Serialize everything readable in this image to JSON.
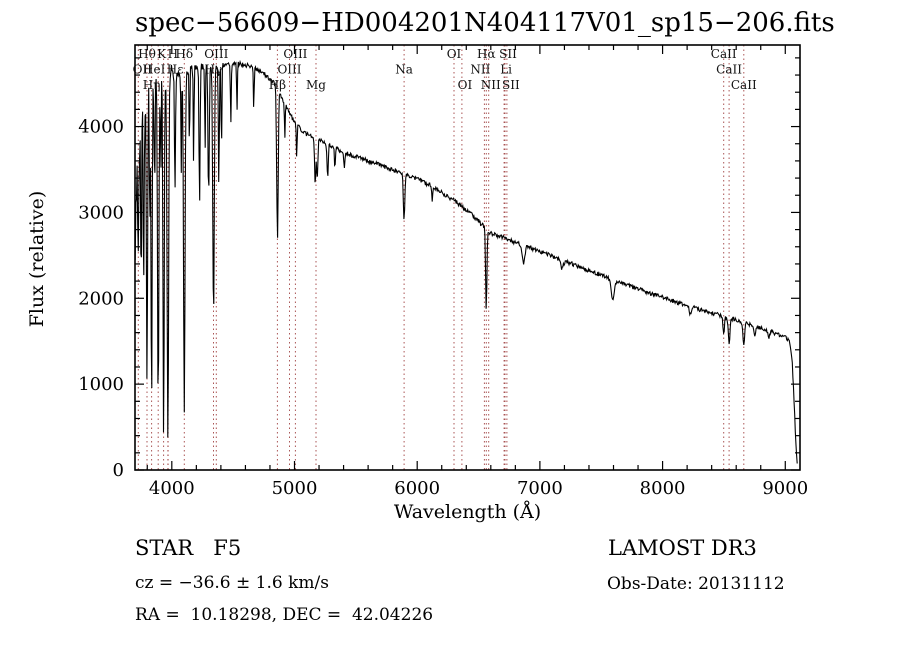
{
  "title": "spec−56609−HD004201N404117V01_sp15−206.fits",
  "chart_data": {
    "type": "line",
    "title": "spec−56609−HD004201N404117V01_sp15−206.fits",
    "xlabel": "Wavelength (Å)",
    "ylabel": "Flux (relative)",
    "xlim": [
      3700,
      9120
    ],
    "ylim": [
      0,
      4950
    ],
    "xticks": [
      4000,
      5000,
      6000,
      7000,
      8000,
      9000
    ],
    "yticks": [
      0,
      1000,
      2000,
      3000,
      4000
    ],
    "x_minor_step": 200,
    "y_minor_step": 200,
    "grid": false,
    "legend": null,
    "spectrum_color": "#000000",
    "marker_line_color": "#aa5555",
    "label_color": "#111111",
    "noise_seed": 20131112,
    "noise": {
      "base": 25,
      "blue_extra": 260,
      "blue_scale": 300
    },
    "sample_step": 5,
    "continuum": [
      [
        3700,
        2600
      ],
      [
        3725,
        3700
      ],
      [
        3755,
        4280
      ],
      [
        3790,
        4430
      ],
      [
        3850,
        4500
      ],
      [
        3900,
        4520
      ],
      [
        3950,
        4570
      ],
      [
        4000,
        4600
      ],
      [
        4050,
        4630
      ],
      [
        4100,
        4650
      ],
      [
        4150,
        4680
      ],
      [
        4250,
        4700
      ],
      [
        4350,
        4710
      ],
      [
        4450,
        4720
      ],
      [
        4550,
        4730
      ],
      [
        4650,
        4700
      ],
      [
        4750,
        4620
      ],
      [
        4800,
        4550
      ],
      [
        4850,
        4480
      ],
      [
        4900,
        4330
      ],
      [
        4950,
        4180
      ],
      [
        5000,
        4050
      ],
      [
        5050,
        3970
      ],
      [
        5100,
        3910
      ],
      [
        5150,
        3870
      ],
      [
        5200,
        3840
      ],
      [
        5250,
        3810
      ],
      [
        5300,
        3780
      ],
      [
        5350,
        3740
      ],
      [
        5400,
        3700
      ],
      [
        5500,
        3650
      ],
      [
        5600,
        3600
      ],
      [
        5700,
        3550
      ],
      [
        5800,
        3500
      ],
      [
        5900,
        3450
      ],
      [
        6000,
        3390
      ],
      [
        6100,
        3320
      ],
      [
        6200,
        3230
      ],
      [
        6300,
        3140
      ],
      [
        6400,
        3030
      ],
      [
        6500,
        2900
      ],
      [
        6550,
        2820
      ],
      [
        6600,
        2760
      ],
      [
        6650,
        2730
      ],
      [
        6700,
        2710
      ],
      [
        6800,
        2650
      ],
      [
        6900,
        2600
      ],
      [
        7000,
        2550
      ],
      [
        7100,
        2490
      ],
      [
        7200,
        2430
      ],
      [
        7300,
        2380
      ],
      [
        7400,
        2320
      ],
      [
        7500,
        2270
      ],
      [
        7600,
        2210
      ],
      [
        7700,
        2160
      ],
      [
        7800,
        2110
      ],
      [
        7900,
        2060
      ],
      [
        8000,
        2010
      ],
      [
        8100,
        1960
      ],
      [
        8200,
        1910
      ],
      [
        8300,
        1870
      ],
      [
        8400,
        1830
      ],
      [
        8500,
        1790
      ],
      [
        8600,
        1750
      ],
      [
        8700,
        1700
      ],
      [
        8800,
        1650
      ],
      [
        8900,
        1600
      ],
      [
        9000,
        1550
      ],
      [
        9030,
        1510
      ],
      [
        9055,
        1300
      ],
      [
        9075,
        700
      ],
      [
        9090,
        180
      ],
      [
        9100,
        60
      ]
    ],
    "absorption_lines": [
      [
        3727,
        0.3,
        4
      ],
      [
        3750,
        0.45,
        4
      ],
      [
        3771,
        0.55,
        4
      ],
      [
        3798,
        0.72,
        5
      ],
      [
        3820,
        0.35,
        3
      ],
      [
        3835,
        0.82,
        5
      ],
      [
        3860,
        0.3,
        3
      ],
      [
        3889,
        0.84,
        5
      ],
      [
        3910,
        0.25,
        3
      ],
      [
        3933,
        0.92,
        5
      ],
      [
        3968,
        0.9,
        6
      ],
      [
        4026,
        0.28,
        4
      ],
      [
        4077,
        0.25,
        3
      ],
      [
        4102,
        0.86,
        6
      ],
      [
        4144,
        0.22,
        3
      ],
      [
        4178,
        0.25,
        3
      ],
      [
        4226,
        0.35,
        4
      ],
      [
        4271,
        0.22,
        3
      ],
      [
        4300,
        0.32,
        5
      ],
      [
        4340,
        0.62,
        6
      ],
      [
        4383,
        0.3,
        4
      ],
      [
        4405,
        0.22,
        3
      ],
      [
        4481,
        0.15,
        3
      ],
      [
        4531,
        0.12,
        3
      ],
      [
        4668,
        0.1,
        3
      ],
      [
        4861,
        0.4,
        6
      ],
      [
        4921,
        0.1,
        3
      ],
      [
        5018,
        0.1,
        3
      ],
      [
        5169,
        0.14,
        5
      ],
      [
        5185,
        0.12,
        5
      ],
      [
        5270,
        0.1,
        5
      ],
      [
        5329,
        0.06,
        4
      ],
      [
        5406,
        0.05,
        4
      ],
      [
        5893,
        0.15,
        6
      ],
      [
        6122,
        0.05,
        4
      ],
      [
        6563,
        0.33,
        5
      ],
      [
        6867,
        0.08,
        10
      ],
      [
        7180,
        0.04,
        10
      ],
      [
        7594,
        0.11,
        12
      ],
      [
        8227,
        0.05,
        8
      ],
      [
        8498,
        0.11,
        6
      ],
      [
        8542,
        0.17,
        7
      ],
      [
        8662,
        0.15,
        7
      ],
      [
        8750,
        0.07,
        6
      ],
      [
        8865,
        0.06,
        6
      ]
    ],
    "line_markers": [
      {
        "wl": 3798,
        "label": "Hθ",
        "row": 0
      },
      {
        "wl": 3933,
        "label": "K",
        "row": 0,
        "dx": -2
      },
      {
        "wl": 3968,
        "label": "H",
        "row": 0,
        "dx": 5
      },
      {
        "wl": 4102,
        "label": "Hδ",
        "row": 0
      },
      {
        "wl": 4363,
        "label": "OIII",
        "row": 0
      },
      {
        "wl": 5007,
        "label": "OIII",
        "row": 0
      },
      {
        "wl": 6300,
        "label": "OI",
        "row": 0
      },
      {
        "wl": 6563,
        "label": "Hα",
        "row": 0
      },
      {
        "wl": 6716,
        "label": "SII",
        "row": 0,
        "dx": 3
      },
      {
        "wl": 8498,
        "label": "CaII",
        "row": 0
      },
      {
        "wl": 3727,
        "label": "OII",
        "row": 1,
        "dx": 4
      },
      {
        "wl": 3889,
        "label": "HeI",
        "row": 1,
        "dx": -4
      },
      {
        "wl": 3970,
        "label": "Hε",
        "row": 1,
        "dx": 7
      },
      {
        "wl": 4340,
        "label": "Hγ",
        "row": 1
      },
      {
        "wl": 4959,
        "label": "OIII",
        "row": 1
      },
      {
        "wl": 5893,
        "label": "Na",
        "row": 1
      },
      {
        "wl": 6548,
        "label": "NII",
        "row": 1,
        "dx": -4
      },
      {
        "wl": 6708,
        "label": "Li",
        "row": 1,
        "dx": 2
      },
      {
        "wl": 8542,
        "label": "CaII",
        "row": 1
      },
      {
        "wl": 3835,
        "label": "Hη",
        "row": 2
      },
      {
        "wl": 4861,
        "label": "Hβ",
        "row": 2
      },
      {
        "wl": 5175,
        "label": "Mg",
        "row": 2
      },
      {
        "wl": 6364,
        "label": "OI",
        "row": 2,
        "dx": 3
      },
      {
        "wl": 6583,
        "label": "NII",
        "row": 2,
        "dx": 2
      },
      {
        "wl": 6731,
        "label": "SII",
        "row": 2,
        "dx": 4
      },
      {
        "wl": 8662,
        "label": "CaII",
        "row": 2
      }
    ]
  },
  "footer": {
    "left": {
      "class_line": "STAR   F5",
      "cz_line": "cz = −36.6 ± 1.6 km/s",
      "coord_line": "RA =  10.18298, DEC =  42.04226"
    },
    "right": {
      "survey": "LAMOST DR3",
      "obsdate_line": "Obs-Date: 20131112"
    }
  }
}
